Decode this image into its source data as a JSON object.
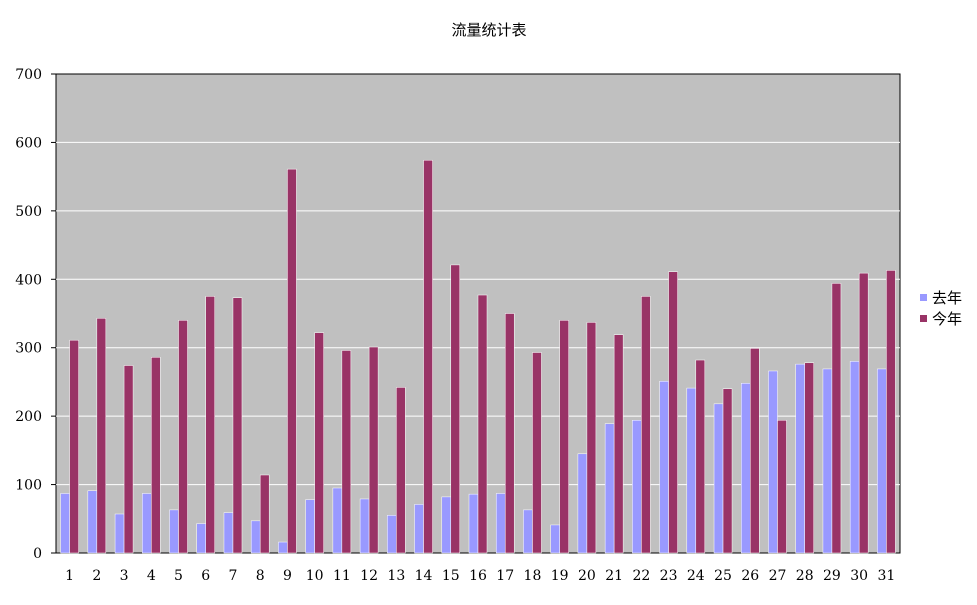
{
  "chart_data": {
    "type": "bar",
    "title": "流量统计表",
    "xlabel": "",
    "ylabel": "",
    "ylim": [
      0,
      700
    ],
    "yticks": [
      0,
      100,
      200,
      300,
      400,
      500,
      600,
      700
    ],
    "grid": true,
    "legend": "right",
    "plot_background": "#c0c0c0",
    "categories": [
      "1",
      "2",
      "3",
      "4",
      "5",
      "6",
      "7",
      "8",
      "9",
      "10",
      "11",
      "12",
      "13",
      "14",
      "15",
      "16",
      "17",
      "18",
      "19",
      "20",
      "21",
      "22",
      "23",
      "24",
      "25",
      "26",
      "27",
      "28",
      "29",
      "30",
      "31"
    ],
    "series": [
      {
        "name": "去年",
        "color": "#9999ff",
        "values": [
          87,
          91,
          57,
          87,
          63,
          43,
          59,
          47,
          16,
          78,
          95,
          79,
          55,
          71,
          82,
          86,
          87,
          63,
          41,
          145,
          189,
          194,
          251,
          241,
          218,
          248,
          266,
          276,
          269,
          280,
          269
        ]
      },
      {
        "name": "今年",
        "color": "#993366",
        "values": [
          311,
          343,
          274,
          286,
          340,
          375,
          373,
          114,
          561,
          322,
          296,
          301,
          242,
          574,
          421,
          377,
          350,
          293,
          340,
          337,
          319,
          375,
          411,
          282,
          240,
          299,
          194,
          278,
          394,
          409,
          413
        ]
      }
    ]
  }
}
